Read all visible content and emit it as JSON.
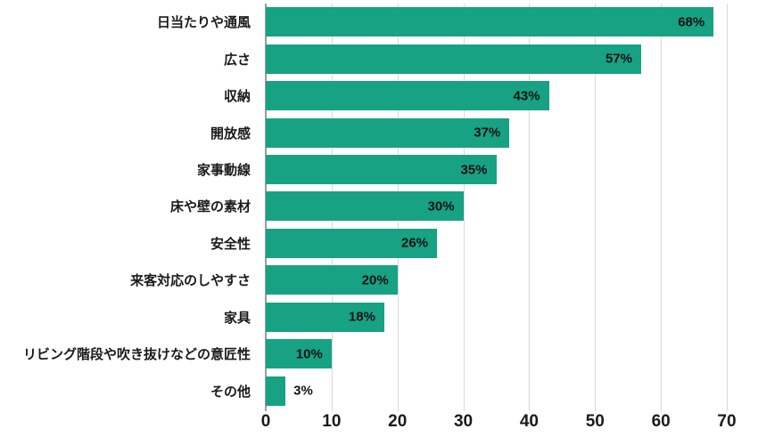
{
  "chart_data": {
    "type": "bar",
    "orientation": "horizontal",
    "title": "",
    "xlabel": "",
    "ylabel": "",
    "categories": [
      "日当たりや通風",
      "広さ",
      "収納",
      "開放感",
      "家事動線",
      "床や壁の素材",
      "安全性",
      "来客対応のしやすさ",
      "家具",
      "リビング階段や吹き抜けなどの意匠性",
      "その他"
    ],
    "values": [
      68,
      57,
      43,
      37,
      35,
      30,
      26,
      20,
      18,
      10,
      3
    ],
    "value_labels": [
      "68%",
      "57%",
      "43%",
      "37%",
      "35%",
      "30%",
      "26%",
      "20%",
      "18%",
      "10%",
      "3%"
    ],
    "xlim": [
      0,
      70
    ],
    "x_ticks": [
      0,
      10,
      20,
      30,
      40,
      50,
      60,
      70
    ],
    "grid": true,
    "legend": false,
    "colors": {
      "bar": "#17a283",
      "gridline": "#d9d9d9",
      "axis_line": "#9b9b9b",
      "text": "#1a1a1a"
    }
  }
}
